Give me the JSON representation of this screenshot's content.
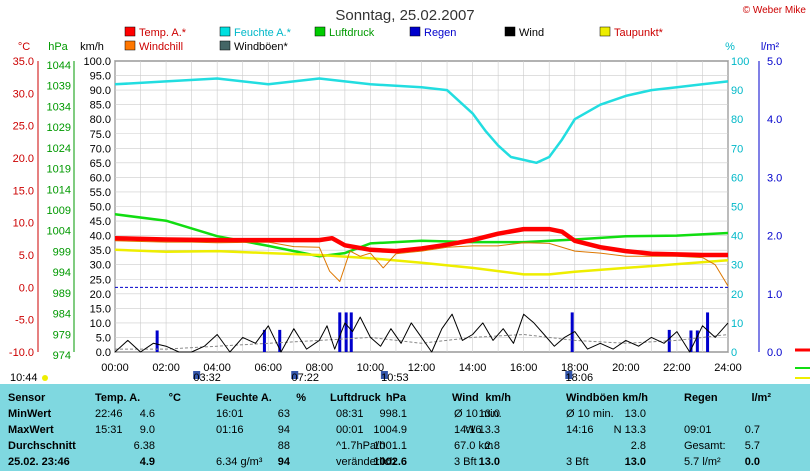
{
  "chart_data": {
    "type": "line",
    "title": "Sonntag, 25.02.2007",
    "credit": "© Weber Mike",
    "legend": [
      {
        "name": "Temp. A.*",
        "color": "#ff0000"
      },
      {
        "name": "Feuchte A.*",
        "color": "#00e0e0"
      },
      {
        "name": "Luftdruck",
        "color": "#00cc00"
      },
      {
        "name": "Regen",
        "color": "#0000cc"
      },
      {
        "name": "Wind",
        "color": "#000000"
      },
      {
        "name": "Taupunkt*",
        "color": "#eeee00"
      },
      {
        "name": "Windchill",
        "color": "#ff7700"
      },
      {
        "name": "Windböen*",
        "color": "#446666"
      }
    ],
    "axis_units": {
      "temp": "°C",
      "pressure": "hPa",
      "wind": "km/h",
      "humidity": "%",
      "rain": "l/m²"
    },
    "temp_ticks": [
      "35.0",
      "30.0",
      "25.0",
      "20.0",
      "15.0",
      "10.0",
      "5.0",
      "0.0",
      "-5.0",
      "-10.0"
    ],
    "pressure_ticks": [
      "1044",
      "1039",
      "1034",
      "1029",
      "1024",
      "1019",
      "1014",
      "1009",
      "1004",
      "999",
      "994",
      "989",
      "984",
      "979",
      "974"
    ],
    "wind_ticks": [
      "100.0",
      "95.0",
      "90.0",
      "85.0",
      "80.0",
      "75.0",
      "70.0",
      "65.0",
      "60.0",
      "55.0",
      "50.0",
      "45.0",
      "40.0",
      "35.0",
      "30.0",
      "25.0",
      "20.0",
      "15.0",
      "10.0",
      "5.0",
      "0.0"
    ],
    "humidity_ticks": [
      "100",
      "90",
      "80",
      "70",
      "60",
      "50",
      "40",
      "30",
      "20",
      "10",
      "0"
    ],
    "rain_ticks": [
      "5.0",
      "4.0",
      "3.0",
      "2.0",
      "1.0",
      "0.0"
    ],
    "x_ticks": [
      "00:00",
      "02:00",
      "04:00",
      "06:00",
      "08:00",
      "10:00",
      "12:00",
      "14:00",
      "16:00",
      "18:00",
      "20:00",
      "22:00",
      "24:00"
    ],
    "temp_ylim": [
      -10,
      35
    ],
    "humidity_ylim": [
      0,
      100
    ],
    "rain_ylim": [
      0,
      5
    ],
    "series": [
      {
        "name": "Temp. A.*",
        "axis": "temp",
        "x": [
          0,
          2,
          4,
          6,
          7,
          8,
          8.5,
          9,
          10,
          11,
          12,
          13,
          14,
          15,
          16,
          17,
          17.5,
          18,
          19,
          20,
          21,
          22,
          23,
          24
        ],
        "y": [
          7.6,
          7.4,
          7.3,
          7.3,
          7.3,
          7.3,
          7.6,
          6.5,
          5.8,
          5.6,
          6.0,
          6.6,
          7.3,
          8.3,
          9.0,
          9.0,
          8.6,
          7.2,
          6.2,
          5.6,
          5.2,
          5.1,
          5.0,
          5.0
        ]
      },
      {
        "name": "Feuchte A.*",
        "axis": "humidity",
        "x": [
          0,
          2,
          4,
          6,
          8,
          10,
          12,
          13,
          14,
          14.5,
          15,
          15.5,
          16,
          16.5,
          17,
          17.5,
          18,
          19,
          20,
          21,
          22,
          23,
          24
        ],
        "y": [
          92,
          93,
          94,
          92,
          94,
          92,
          91,
          90,
          82,
          76,
          71,
          67,
          66,
          65,
          67,
          73,
          80,
          85,
          88,
          90,
          91,
          92,
          93
        ]
      },
      {
        "name": "Luftdruck",
        "axis": "temp",
        "x": [
          0,
          2,
          4,
          6,
          8,
          9,
          10,
          12,
          14,
          16,
          18,
          20,
          22,
          24
        ],
        "y": [
          11.3,
          10.3,
          7.9,
          6.4,
          4.8,
          5.3,
          6.8,
          7.2,
          7.0,
          7.0,
          7.4,
          7.9,
          8.0,
          8.4
        ]
      },
      {
        "name": "Taupunkt*",
        "axis": "temp",
        "x": [
          0,
          2,
          4,
          6,
          8,
          10,
          12,
          14,
          16,
          17,
          18,
          20,
          22,
          24
        ],
        "y": [
          5.8,
          5.5,
          5.6,
          5.3,
          5.0,
          4.5,
          3.8,
          3.0,
          2.0,
          2.0,
          2.4,
          3.0,
          3.6,
          4.2
        ]
      },
      {
        "name": "Windchill",
        "axis": "temp",
        "x": [
          0,
          2,
          3,
          4,
          6,
          7,
          8,
          8.4,
          8.8,
          9.2,
          9.6,
          10,
          10.5,
          11,
          11.5,
          12,
          13,
          14,
          15,
          16,
          17,
          18,
          19,
          20,
          22,
          23,
          23.5,
          24
        ],
        "y": [
          7.2,
          7.0,
          7.0,
          6.9,
          7.0,
          6.3,
          6.2,
          2.5,
          0.9,
          5.6,
          4.8,
          5.3,
          3.0,
          5.2,
          5.4,
          5.6,
          6.2,
          6.4,
          6.4,
          6.9,
          6.8,
          5.6,
          5.3,
          4.8,
          4.8,
          4.6,
          3.5,
          0.2
        ]
      },
      {
        "name": "Wind",
        "axis": "wind",
        "x": [
          0,
          0.5,
          1,
          1.5,
          2,
          2.5,
          3,
          3.5,
          4,
          4.5,
          5,
          5.5,
          6,
          6.5,
          7,
          7.5,
          8,
          8.3,
          8.6,
          9,
          9.3,
          9.6,
          10,
          10.4,
          10.8,
          11.2,
          11.6,
          12,
          12.4,
          12.8,
          13.2,
          13.6,
          14,
          14.4,
          14.8,
          15.2,
          15.6,
          16,
          16.4,
          16.8,
          17.2,
          17.6,
          18,
          18.5,
          19,
          19.5,
          20,
          20.5,
          21,
          21.5,
          22,
          22.5,
          23,
          23.5,
          24
        ],
        "y": [
          0,
          4,
          0,
          3,
          2,
          0,
          0,
          2,
          6,
          0,
          5,
          3,
          9,
          0,
          8,
          1,
          4,
          9,
          1,
          10,
          7,
          12,
          5,
          2,
          8,
          3,
          10,
          5,
          0,
          8,
          13,
          4,
          6,
          10,
          4,
          8,
          3,
          13,
          10,
          6,
          2,
          5,
          7,
          1,
          3,
          1,
          4,
          2,
          5,
          3,
          7,
          0,
          9,
          5,
          10
        ]
      },
      {
        "name": "Windböen*",
        "axis": "wind",
        "x": [
          0,
          2,
          4,
          6,
          8,
          10,
          12,
          14,
          16,
          18,
          20,
          22,
          24
        ],
        "y": [
          1,
          1,
          2,
          3,
          4,
          5,
          3,
          5,
          6,
          4,
          3,
          4,
          6
        ]
      }
    ],
    "rain_bars": {
      "x": [
        1.65,
        5.85,
        6.45,
        8.8,
        9.05,
        9.25,
        17.9,
        21.7,
        22.55,
        22.8,
        23.2
      ],
      "values": [
        0.37,
        0.38,
        0.38,
        0.68,
        0.68,
        0.68,
        0.68,
        0.38,
        0.37,
        0.37,
        0.68
      ]
    },
    "markers": [
      {
        "label": "03:32",
        "x": 3.53
      },
      {
        "label": "07:22",
        "x": 7.37
      },
      {
        "label": "10:53",
        "x": 10.88
      },
      {
        "label": "18:06",
        "x": 18.1
      },
      {
        "label": "10:44",
        "x": 0
      }
    ]
  },
  "summary": {
    "headers": [
      "Sensor",
      "Temp. A.",
      "°C",
      "Feuchte A.",
      "%",
      "Luftdruck",
      "hPa",
      "Wind",
      "km/h",
      "Windböen",
      "km/h",
      "Regen",
      "l/m²"
    ],
    "rows": [
      {
        "label": "MinWert",
        "cells": [
          "22:46",
          "4.6",
          "16:01",
          "63",
          "08:31",
          "998.1",
          "Ø 10 min.",
          "13.0",
          "Ø 10 min.",
          "13.0",
          "",
          ""
        ]
      },
      {
        "label": "MaxWert",
        "cells": [
          "15:31",
          "9.0",
          "01:16",
          "94",
          "00:01",
          "1004.9",
          "14:16",
          "W 13.3",
          "14:16",
          "N 13.3",
          "09:01",
          "0.7"
        ]
      },
      {
        "label": "Durchschnitt",
        "cells": [
          "",
          "6.38",
          "",
          "88",
          "^1.7hPa/h",
          "1001.1",
          "67.0 km",
          "2.8",
          "",
          "2.8",
          "Gesamt:",
          "5.7"
        ]
      },
      {
        "label": "25.02. 23:46",
        "cells": [
          "",
          "4.9",
          "6.34 g/m³",
          "94",
          "veränderlich",
          "1002.6",
          "3 Bft",
          "13.0",
          "3 Bft",
          "13.0",
          "5.7 l/m²",
          "0.0"
        ]
      }
    ]
  }
}
